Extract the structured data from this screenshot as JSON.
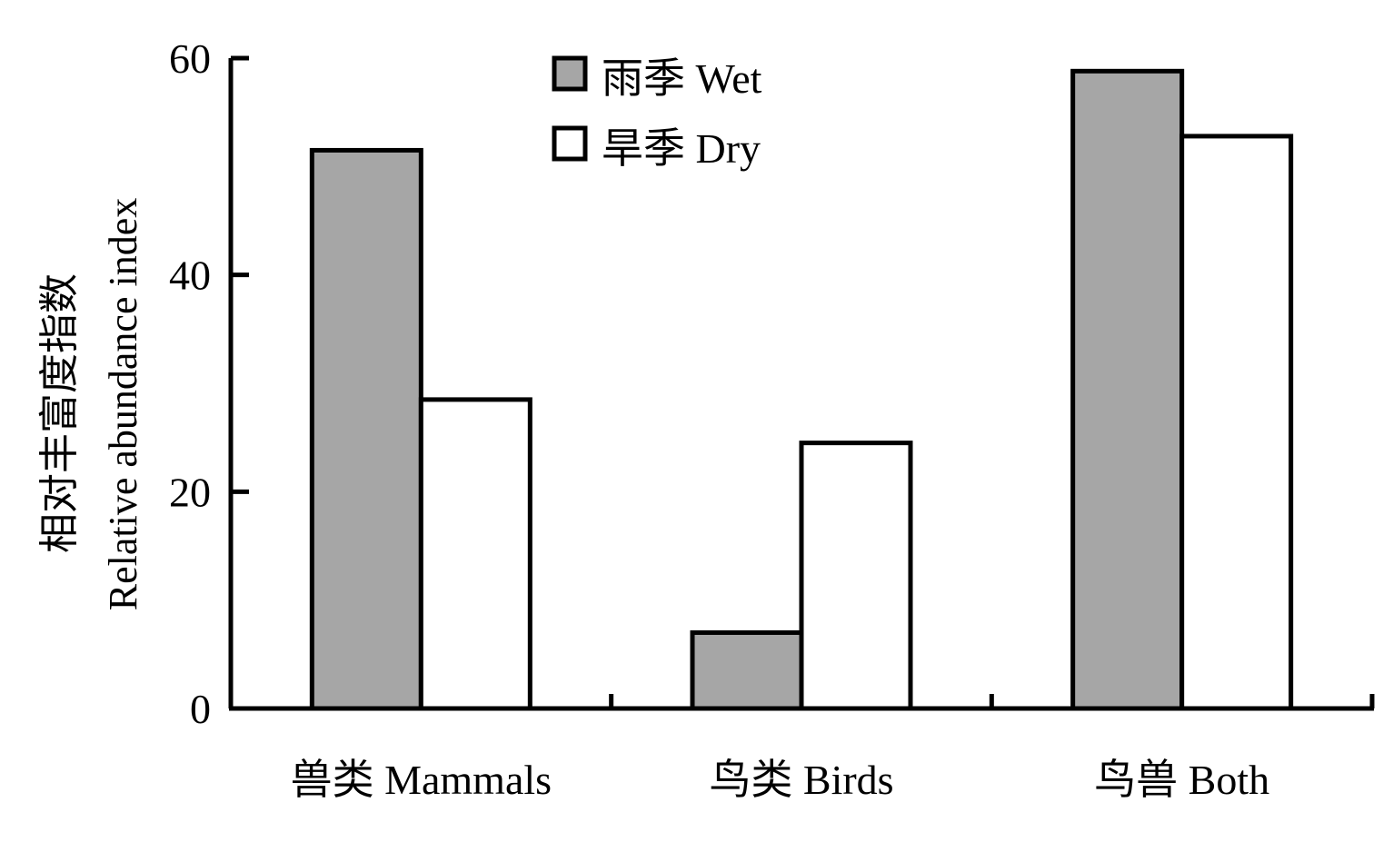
{
  "chart_data": {
    "type": "bar",
    "categories": [
      "兽类 Mammals",
      "鸟类 Birds",
      "鸟兽 Both"
    ],
    "series": [
      {
        "name": "雨季 Wet",
        "values": [
          51.5,
          7.0,
          58.8
        ],
        "color": "#a6a6a6"
      },
      {
        "name": "旱季 Dry",
        "values": [
          28.5,
          24.5,
          52.8
        ],
        "color": "#ffffff"
      }
    ],
    "ylabel_line1": "相对丰富度指数",
    "ylabel_line2": "Relative abundance index",
    "ylim": [
      0,
      60
    ],
    "yticks": [
      0,
      20,
      40,
      60
    ],
    "yticklabels": [
      "0",
      "20",
      "40",
      "60"
    ],
    "legend_position": "top-center",
    "grid": false
  }
}
